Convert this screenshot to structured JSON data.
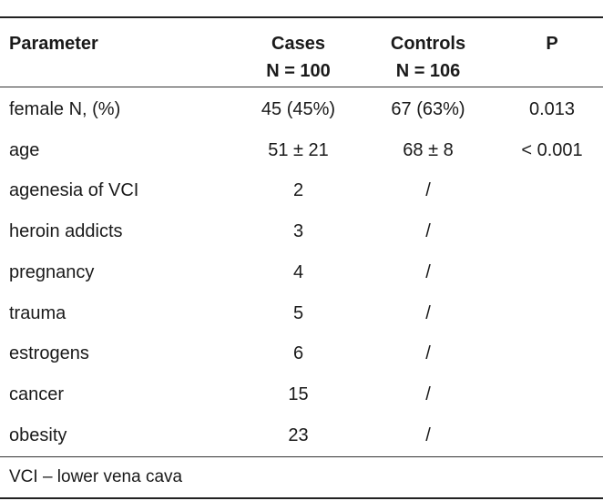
{
  "table": {
    "headers": {
      "parameter": "Parameter",
      "cases_line1": "Cases",
      "cases_line2": "N = 100",
      "controls_line1": "Controls",
      "controls_line2": "N = 106",
      "p": "P"
    },
    "rows": [
      {
        "parameter": "female N, (%)",
        "cases": "45 (45%)",
        "controls": "67 (63%)",
        "p": "0.013"
      },
      {
        "parameter": "age",
        "cases": "51 ± 21",
        "controls": "68 ± 8",
        "p": "< 0.001"
      },
      {
        "parameter": "agenesia of VCI",
        "cases": "2",
        "controls": "/",
        "p": ""
      },
      {
        "parameter": "heroin addicts",
        "cases": "3",
        "controls": "/",
        "p": ""
      },
      {
        "parameter": "pregnancy",
        "cases": "4",
        "controls": "/",
        "p": ""
      },
      {
        "parameter": "trauma",
        "cases": "5",
        "controls": "/",
        "p": ""
      },
      {
        "parameter": "estrogens",
        "cases": "6",
        "controls": "/",
        "p": ""
      },
      {
        "parameter": "cancer",
        "cases": "15",
        "controls": "/",
        "p": ""
      },
      {
        "parameter": "obesity",
        "cases": "23",
        "controls": "/",
        "p": ""
      }
    ],
    "footnote": "VCI – lower vena cava"
  }
}
